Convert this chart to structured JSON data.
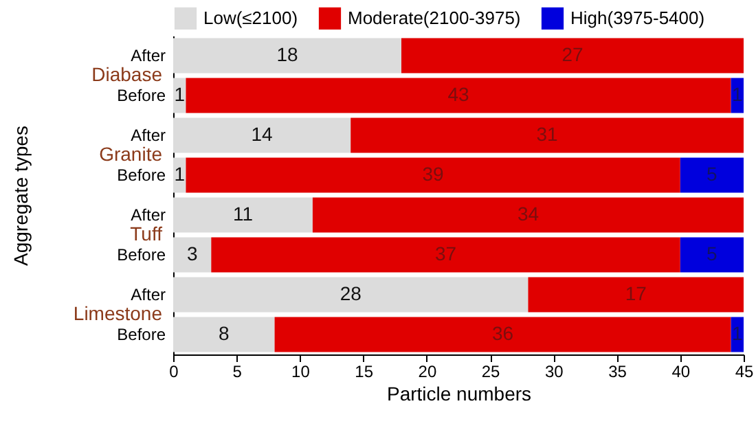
{
  "chart_data": {
    "type": "bar",
    "orientation": "horizontal",
    "stacked": true,
    "xlabel": "Particle numbers",
    "ylabel": "Aggregate types",
    "categories": [
      "After",
      "Before",
      "After",
      "Before",
      "After",
      "Before",
      "After",
      "Before"
    ],
    "annotations": [
      "Diabase",
      "Granite",
      "Tuff",
      "Limestone"
    ],
    "series": [
      {
        "name": "Low(≤2100)",
        "color": "#dcdcdc",
        "values": [
          18,
          1,
          14,
          1,
          11,
          3,
          28,
          8
        ],
        "value_labels": [
          "18",
          "1",
          "14",
          "1",
          "11",
          "3",
          "28",
          "8"
        ]
      },
      {
        "name": "Moderate(2100-3975)",
        "color": "#e00000",
        "values": [
          27,
          43,
          31,
          39,
          34,
          37,
          17,
          36
        ],
        "value_labels": [
          "27",
          "43",
          "31",
          "39",
          "34",
          "37",
          "17",
          "36"
        ]
      },
      {
        "name": "High(3975-5400)",
        "color": "#0000dd",
        "values": [
          0,
          1,
          0,
          5,
          0,
          5,
          0,
          1
        ],
        "value_labels": [
          null,
          "1",
          null,
          "5",
          null,
          "5",
          null,
          "1"
        ]
      }
    ],
    "xlim": [
      0,
      45
    ],
    "xticks": [
      0,
      5,
      10,
      15,
      20,
      25,
      30,
      35,
      40,
      45
    ],
    "grid": false,
    "legend": "top right"
  }
}
